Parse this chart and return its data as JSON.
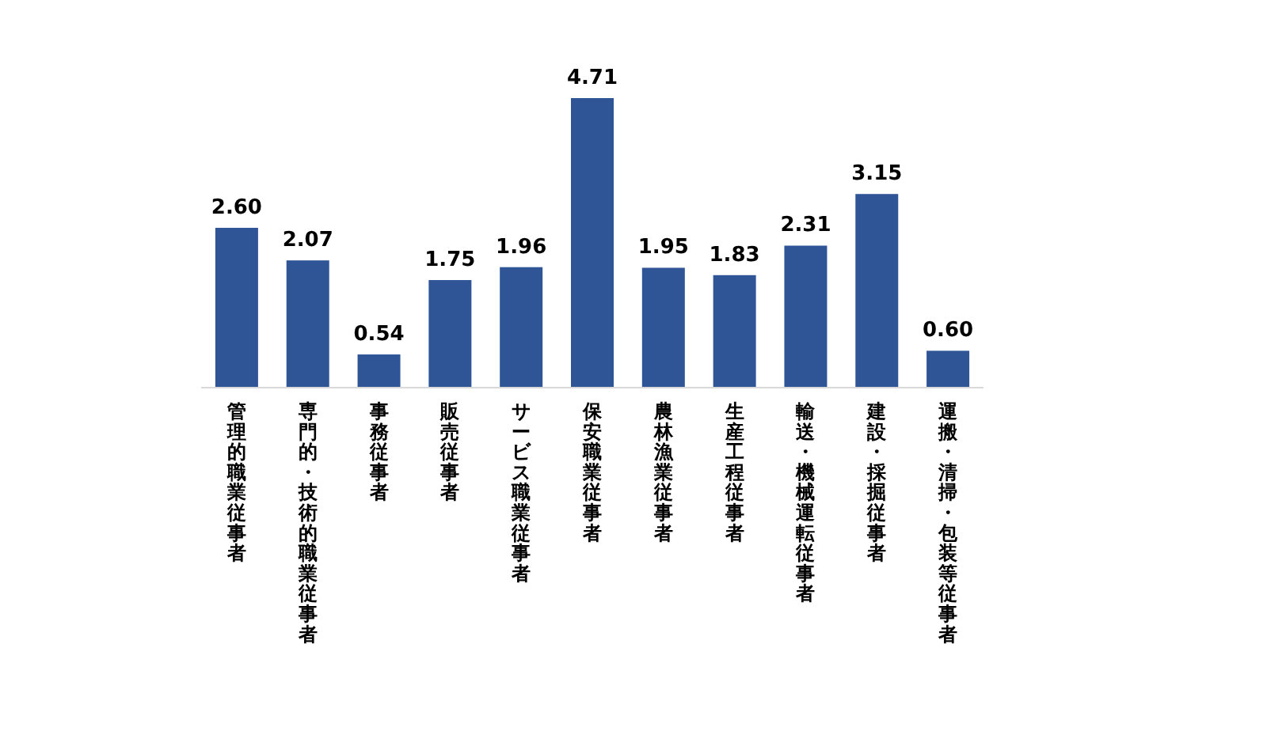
{
  "chart_data": {
    "type": "bar",
    "categories": [
      "管理的職業従事者",
      "専門的・技術的職業従事者",
      "事務従事者",
      "販売従事者",
      "サービス職業従事者",
      "保安職業従事者",
      "農林漁業従事者",
      "生産工程従事者",
      "輸送・機械運転従事者",
      "建設・採掘従事者",
      "運搬・清掃・包装等従事者"
    ],
    "values": [
      2.6,
      2.07,
      0.54,
      1.75,
      1.96,
      4.71,
      1.95,
      1.83,
      2.31,
      3.15,
      0.6
    ],
    "value_labels": [
      "2.60",
      "2.07",
      "0.54",
      "1.75",
      "1.96",
      "4.71",
      "1.95",
      "1.83",
      "2.31",
      "3.15",
      "0.60"
    ],
    "color": "#2f5597"
  }
}
